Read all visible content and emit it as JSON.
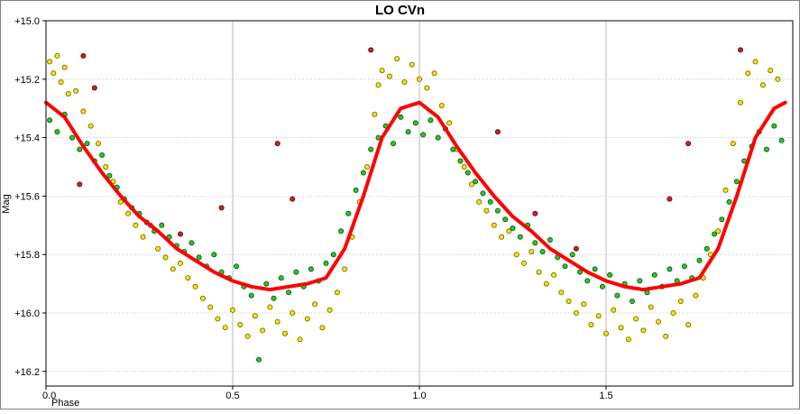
{
  "chart_data": {
    "type": "scatter",
    "title": "LO CVn",
    "xlabel": "Phase",
    "ylabel": "Mag",
    "xlim": [
      0.0,
      2.0
    ],
    "ylim": [
      15.0,
      16.25
    ],
    "y_inverted": true,
    "grid": true,
    "x_ticks": [
      {
        "value": 0.0,
        "label": "0.0"
      },
      {
        "value": 0.5,
        "label": "0.5"
      },
      {
        "value": 1.0,
        "label": "1.0"
      },
      {
        "value": 1.5,
        "label": "1.5"
      }
    ],
    "y_ticks": [
      {
        "value": 15.0,
        "label": "+15.0"
      },
      {
        "value": 15.2,
        "label": "+15.2"
      },
      {
        "value": 15.4,
        "label": "+15.4"
      },
      {
        "value": 15.6,
        "label": "+15.6"
      },
      {
        "value": 15.8,
        "label": "+15.8"
      },
      {
        "value": 16.0,
        "label": "+16.0"
      },
      {
        "value": 16.2,
        "label": "+16.2"
      }
    ],
    "fit_curve": {
      "color": "#ff0000",
      "points": [
        [
          0.0,
          15.28
        ],
        [
          0.05,
          15.33
        ],
        [
          0.1,
          15.43
        ],
        [
          0.15,
          15.52
        ],
        [
          0.2,
          15.6
        ],
        [
          0.25,
          15.67
        ],
        [
          0.3,
          15.72
        ],
        [
          0.35,
          15.78
        ],
        [
          0.4,
          15.82
        ],
        [
          0.45,
          15.86
        ],
        [
          0.5,
          15.89
        ],
        [
          0.55,
          15.91
        ],
        [
          0.6,
          15.92
        ],
        [
          0.65,
          15.91
        ],
        [
          0.7,
          15.9
        ],
        [
          0.75,
          15.88
        ],
        [
          0.8,
          15.78
        ],
        [
          0.85,
          15.6
        ],
        [
          0.9,
          15.4
        ],
        [
          0.95,
          15.3
        ],
        [
          1.0,
          15.28
        ],
        [
          1.05,
          15.33
        ],
        [
          1.1,
          15.43
        ],
        [
          1.15,
          15.52
        ],
        [
          1.2,
          15.6
        ],
        [
          1.25,
          15.67
        ],
        [
          1.3,
          15.72
        ],
        [
          1.35,
          15.78
        ],
        [
          1.4,
          15.82
        ],
        [
          1.45,
          15.86
        ],
        [
          1.5,
          15.89
        ],
        [
          1.55,
          15.91
        ],
        [
          1.6,
          15.92
        ],
        [
          1.65,
          15.91
        ],
        [
          1.7,
          15.9
        ],
        [
          1.75,
          15.88
        ],
        [
          1.8,
          15.78
        ],
        [
          1.85,
          15.6
        ],
        [
          1.9,
          15.4
        ],
        [
          1.95,
          15.3
        ],
        [
          1.98,
          15.28
        ]
      ]
    },
    "series": [
      {
        "color": "#f5e600",
        "stroke": "#6b6200",
        "points": [
          [
            0.01,
            15.14
          ],
          [
            0.02,
            15.18
          ],
          [
            0.03,
            15.12
          ],
          [
            0.04,
            15.21
          ],
          [
            0.05,
            15.16
          ],
          [
            0.06,
            15.25
          ],
          [
            0.08,
            15.24
          ],
          [
            0.1,
            15.31
          ],
          [
            0.12,
            15.36
          ],
          [
            0.14,
            15.42
          ],
          [
            0.16,
            15.5
          ],
          [
            0.18,
            15.55
          ],
          [
            0.2,
            15.62
          ],
          [
            0.22,
            15.66
          ],
          [
            0.24,
            15.7
          ],
          [
            0.26,
            15.74
          ],
          [
            0.28,
            15.7
          ],
          [
            0.3,
            15.78
          ],
          [
            0.32,
            15.81
          ],
          [
            0.34,
            15.85
          ],
          [
            0.36,
            15.83
          ],
          [
            0.38,
            15.88
          ],
          [
            0.4,
            15.91
          ],
          [
            0.42,
            15.95
          ],
          [
            0.44,
            15.98
          ],
          [
            0.46,
            16.02
          ],
          [
            0.48,
            16.05
          ],
          [
            0.5,
            15.99
          ],
          [
            0.52,
            16.04
          ],
          [
            0.54,
            16.08
          ],
          [
            0.56,
            16.01
          ],
          [
            0.58,
            16.06
          ],
          [
            0.6,
            15.98
          ],
          [
            0.62,
            16.03
          ],
          [
            0.64,
            16.07
          ],
          [
            0.66,
            16.0
          ],
          [
            0.68,
            16.09
          ],
          [
            0.7,
            16.02
          ],
          [
            0.72,
            15.97
          ],
          [
            0.74,
            16.05
          ],
          [
            0.76,
            15.99
          ],
          [
            0.78,
            15.93
          ],
          [
            0.8,
            15.85
          ],
          [
            0.82,
            15.74
          ],
          [
            0.84,
            15.62
          ],
          [
            0.86,
            15.5
          ],
          [
            0.88,
            15.32
          ],
          [
            0.89,
            15.22
          ],
          [
            0.9,
            15.17
          ],
          [
            0.92,
            15.19
          ],
          [
            0.94,
            15.13
          ],
          [
            0.96,
            15.21
          ],
          [
            0.98,
            15.15
          ],
          [
            1.0,
            15.2
          ],
          [
            1.02,
            15.23
          ],
          [
            1.04,
            15.18
          ],
          [
            1.06,
            15.29
          ],
          [
            1.08,
            15.35
          ],
          [
            1.1,
            15.44
          ],
          [
            1.12,
            15.5
          ],
          [
            1.14,
            15.56
          ],
          [
            1.16,
            15.62
          ],
          [
            1.18,
            15.65
          ],
          [
            1.2,
            15.7
          ],
          [
            1.22,
            15.74
          ],
          [
            1.24,
            15.72
          ],
          [
            1.26,
            15.8
          ],
          [
            1.28,
            15.83
          ],
          [
            1.3,
            15.79
          ],
          [
            1.32,
            15.86
          ],
          [
            1.34,
            15.9
          ],
          [
            1.36,
            15.87
          ],
          [
            1.38,
            15.93
          ],
          [
            1.4,
            15.96
          ],
          [
            1.42,
            16.0
          ],
          [
            1.44,
            15.97
          ],
          [
            1.46,
            16.04
          ],
          [
            1.48,
            16.01
          ],
          [
            1.5,
            16.07
          ],
          [
            1.52,
            15.99
          ],
          [
            1.54,
            16.05
          ],
          [
            1.56,
            16.09
          ],
          [
            1.58,
            16.02
          ],
          [
            1.6,
            16.06
          ],
          [
            1.62,
            15.98
          ],
          [
            1.64,
            16.03
          ],
          [
            1.66,
            16.08
          ],
          [
            1.68,
            16.0
          ],
          [
            1.7,
            15.96
          ],
          [
            1.72,
            16.04
          ],
          [
            1.74,
            15.94
          ],
          [
            1.76,
            15.88
          ],
          [
            1.78,
            15.8
          ],
          [
            1.8,
            15.72
          ],
          [
            1.82,
            15.58
          ],
          [
            1.84,
            15.42
          ],
          [
            1.86,
            15.28
          ],
          [
            1.88,
            15.18
          ],
          [
            1.9,
            15.14
          ],
          [
            1.92,
            15.22
          ],
          [
            1.94,
            15.17
          ],
          [
            1.96,
            15.2
          ]
        ]
      },
      {
        "color": "#22cc22",
        "stroke": "#0a4d0a",
        "points": [
          [
            0.01,
            15.34
          ],
          [
            0.03,
            15.38
          ],
          [
            0.05,
            15.32
          ],
          [
            0.07,
            15.4
          ],
          [
            0.09,
            15.44
          ],
          [
            0.11,
            15.42
          ],
          [
            0.13,
            15.48
          ],
          [
            0.15,
            15.46
          ],
          [
            0.17,
            15.53
          ],
          [
            0.19,
            15.57
          ],
          [
            0.21,
            15.61
          ],
          [
            0.23,
            15.64
          ],
          [
            0.25,
            15.66
          ],
          [
            0.27,
            15.69
          ],
          [
            0.29,
            15.72
          ],
          [
            0.31,
            15.7
          ],
          [
            0.33,
            15.74
          ],
          [
            0.35,
            15.77
          ],
          [
            0.37,
            15.79
          ],
          [
            0.39,
            15.76
          ],
          [
            0.41,
            15.81
          ],
          [
            0.43,
            15.84
          ],
          [
            0.45,
            15.8
          ],
          [
            0.47,
            15.86
          ],
          [
            0.49,
            15.88
          ],
          [
            0.51,
            15.84
          ],
          [
            0.53,
            15.91
          ],
          [
            0.55,
            15.94
          ],
          [
            0.57,
            16.16
          ],
          [
            0.59,
            15.9
          ],
          [
            0.61,
            15.95
          ],
          [
            0.63,
            15.88
          ],
          [
            0.65,
            15.93
          ],
          [
            0.67,
            15.86
          ],
          [
            0.69,
            15.91
          ],
          [
            0.71,
            15.85
          ],
          [
            0.73,
            15.89
          ],
          [
            0.75,
            15.83
          ],
          [
            0.77,
            15.8
          ],
          [
            0.79,
            15.72
          ],
          [
            0.81,
            15.66
          ],
          [
            0.83,
            15.58
          ],
          [
            0.85,
            15.52
          ],
          [
            0.87,
            15.44
          ],
          [
            0.89,
            15.4
          ],
          [
            0.91,
            15.36
          ],
          [
            0.93,
            15.42
          ],
          [
            0.95,
            15.33
          ],
          [
            0.97,
            15.38
          ],
          [
            0.99,
            15.35
          ],
          [
            1.01,
            15.39
          ],
          [
            1.03,
            15.34
          ],
          [
            1.05,
            15.4
          ],
          [
            1.07,
            15.37
          ],
          [
            1.09,
            15.44
          ],
          [
            1.11,
            15.48
          ],
          [
            1.13,
            15.52
          ],
          [
            1.15,
            15.55
          ],
          [
            1.17,
            15.59
          ],
          [
            1.19,
            15.62
          ],
          [
            1.21,
            15.65
          ],
          [
            1.23,
            15.68
          ],
          [
            1.25,
            15.71
          ],
          [
            1.27,
            15.74
          ],
          [
            1.29,
            15.7
          ],
          [
            1.31,
            15.76
          ],
          [
            1.33,
            15.79
          ],
          [
            1.35,
            15.75
          ],
          [
            1.37,
            15.81
          ],
          [
            1.39,
            15.84
          ],
          [
            1.41,
            15.8
          ],
          [
            1.43,
            15.86
          ],
          [
            1.45,
            15.89
          ],
          [
            1.47,
            15.85
          ],
          [
            1.49,
            15.91
          ],
          [
            1.51,
            15.87
          ],
          [
            1.53,
            15.94
          ],
          [
            1.55,
            15.9
          ],
          [
            1.57,
            15.96
          ],
          [
            1.59,
            15.89
          ],
          [
            1.61,
            15.93
          ],
          [
            1.63,
            15.87
          ],
          [
            1.65,
            15.91
          ],
          [
            1.67,
            15.85
          ],
          [
            1.69,
            15.89
          ],
          [
            1.71,
            15.84
          ],
          [
            1.73,
            15.88
          ],
          [
            1.75,
            15.82
          ],
          [
            1.77,
            15.78
          ],
          [
            1.79,
            15.73
          ],
          [
            1.81,
            15.68
          ],
          [
            1.83,
            15.62
          ],
          [
            1.85,
            15.55
          ],
          [
            1.87,
            15.48
          ],
          [
            1.89,
            15.43
          ],
          [
            1.91,
            15.38
          ],
          [
            1.93,
            15.44
          ],
          [
            1.95,
            15.36
          ],
          [
            1.97,
            15.41
          ]
        ]
      },
      {
        "color": "#cc2222",
        "stroke": "#4d0a0a",
        "points": [
          [
            0.1,
            15.12
          ],
          [
            0.13,
            15.23
          ],
          [
            0.09,
            15.56
          ],
          [
            0.36,
            15.73
          ],
          [
            0.47,
            15.64
          ],
          [
            0.62,
            15.42
          ],
          [
            0.66,
            15.61
          ],
          [
            0.87,
            15.1
          ],
          [
            1.21,
            15.38
          ],
          [
            1.42,
            15.78
          ],
          [
            1.72,
            15.42
          ],
          [
            1.67,
            15.61
          ],
          [
            1.86,
            15.1
          ],
          [
            1.31,
            15.66
          ]
        ]
      }
    ]
  }
}
